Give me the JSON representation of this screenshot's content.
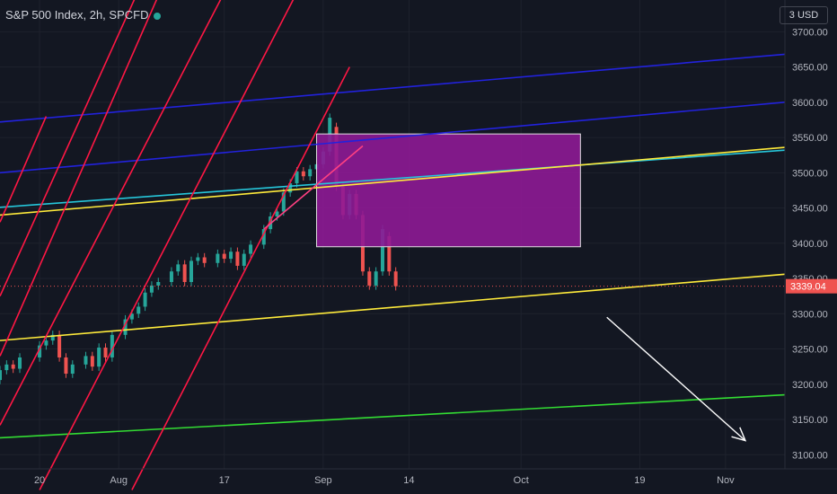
{
  "header": {
    "title": "S&P 500 Index, 2h, SPCFD",
    "currency": "3 USD"
  },
  "colors": {
    "background": "#131722",
    "up": "#26a69a",
    "down": "#ef5350",
    "current_price_bg": "#ef5350",
    "zone_fill": "#8e1a95"
  },
  "chart_data": {
    "type": "candlestick",
    "title": "S&P 500 Index, 2h, SPCFD",
    "current_price": "3339.04",
    "ylim": [
      3080,
      3745
    ],
    "y_ticks": [
      "3700.00",
      "3650.00",
      "3600.00",
      "3550.00",
      "3500.00",
      "3450.00",
      "3400.00",
      "3350.00",
      "3300.00",
      "3250.00",
      "3200.00",
      "3150.00",
      "3100.00"
    ],
    "x_ticks": [
      {
        "label": "20",
        "date": "2020-07-20"
      },
      {
        "label": "Aug",
        "date": "2020-08-01"
      },
      {
        "label": "17",
        "date": "2020-08-17"
      },
      {
        "label": "Sep",
        "date": "2020-09-01"
      },
      {
        "label": "14",
        "date": "2020-09-14"
      },
      {
        "label": "Oct",
        "date": "2020-10-01"
      },
      {
        "label": "19",
        "date": "2020-10-19"
      },
      {
        "label": "Nov",
        "date": "2020-11-01"
      }
    ],
    "xlim": [
      "2020-07-14",
      "2020-11-10"
    ],
    "candles": [
      [
        "2020-07-14",
        3206,
        3220
      ],
      [
        "2020-07-15",
        3220,
        3228
      ],
      [
        "2020-07-16",
        3228,
        3222
      ],
      [
        "2020-07-17",
        3222,
        3238
      ],
      [
        "2020-07-20",
        3238,
        3255
      ],
      [
        "2020-07-21",
        3255,
        3262
      ],
      [
        "2020-07-22",
        3262,
        3270
      ],
      [
        "2020-07-23",
        3270,
        3238
      ],
      [
        "2020-07-24",
        3238,
        3215
      ],
      [
        "2020-07-25",
        3215,
        3228
      ],
      [
        "2020-07-27",
        3228,
        3240
      ],
      [
        "2020-07-28",
        3240,
        3225
      ],
      [
        "2020-07-29",
        3225,
        3252
      ],
      [
        "2020-07-30",
        3252,
        3238
      ],
      [
        "2020-07-31",
        3238,
        3270
      ],
      [
        "2020-08-02",
        3270,
        3292
      ],
      [
        "2020-08-03",
        3292,
        3300
      ],
      [
        "2020-08-04",
        3300,
        3310
      ],
      [
        "2020-08-05",
        3310,
        3330
      ],
      [
        "2020-08-06",
        3330,
        3340
      ],
      [
        "2020-08-07",
        3340,
        3345
      ],
      [
        "2020-08-09",
        3345,
        3360
      ],
      [
        "2020-08-10",
        3360,
        3370
      ],
      [
        "2020-08-11",
        3370,
        3345
      ],
      [
        "2020-08-12",
        3345,
        3375
      ],
      [
        "2020-08-13",
        3375,
        3380
      ],
      [
        "2020-08-14",
        3380,
        3372
      ],
      [
        "2020-08-16",
        3372,
        3385
      ],
      [
        "2020-08-17",
        3385,
        3378
      ],
      [
        "2020-08-18",
        3378,
        3388
      ],
      [
        "2020-08-19",
        3388,
        3368
      ],
      [
        "2020-08-20",
        3368,
        3385
      ],
      [
        "2020-08-21",
        3385,
        3398
      ],
      [
        "2020-08-23",
        3398,
        3420
      ],
      [
        "2020-08-24",
        3420,
        3438
      ],
      [
        "2020-08-25",
        3438,
        3445
      ],
      [
        "2020-08-26",
        3445,
        3472
      ],
      [
        "2020-08-27",
        3472,
        3485
      ],
      [
        "2020-08-28",
        3485,
        3502
      ],
      [
        "2020-08-29",
        3502,
        3495
      ],
      [
        "2020-08-30",
        3495,
        3505
      ],
      [
        "2020-08-31",
        3505,
        3512
      ],
      [
        "2020-09-01",
        3512,
        3530
      ],
      [
        "2020-09-02",
        3530,
        3578
      ],
      [
        "2020-09-03",
        3565,
        3480
      ],
      [
        "2020-09-04",
        3480,
        3440
      ],
      [
        "2020-09-05",
        3440,
        3470
      ],
      [
        "2020-09-06",
        3470,
        3440
      ],
      [
        "2020-09-07",
        3440,
        3360
      ],
      [
        "2020-09-08",
        3360,
        3340
      ],
      [
        "2020-09-09",
        3340,
        3360
      ],
      [
        "2020-09-10",
        3360,
        3420
      ],
      [
        "2020-09-11",
        3410,
        3360
      ],
      [
        "2020-09-12",
        3360,
        3339
      ]
    ],
    "overlays": [
      {
        "type": "rectangle",
        "from": [
          "2020-08-31",
          3555
        ],
        "to": [
          "2020-10-10",
          3395
        ]
      },
      {
        "type": "trendline",
        "color": "#2222dd",
        "from": [
          "2020-07-14",
          3572
        ],
        "to": [
          "2020-11-10",
          3668
        ]
      },
      {
        "type": "trendline",
        "color": "#2222dd",
        "from": [
          "2020-07-14",
          3500
        ],
        "to": [
          "2020-11-10",
          3600
        ]
      },
      {
        "type": "trendline",
        "color": "#26c6da",
        "from": [
          "2020-07-14",
          3451
        ],
        "to": [
          "2020-11-10",
          3532
        ]
      },
      {
        "type": "trendline",
        "color": "#ffeb3b",
        "from": [
          "2020-07-14",
          3440
        ],
        "to": [
          "2020-11-10",
          3536
        ]
      },
      {
        "type": "trendline",
        "color": "#ffeb3b",
        "from": [
          "2020-07-14",
          3262
        ],
        "to": [
          "2020-11-10",
          3356
        ]
      },
      {
        "type": "trendline",
        "color": "#33dd33",
        "from": [
          "2020-07-14",
          3124
        ],
        "to": [
          "2020-11-10",
          3185
        ]
      },
      {
        "type": "trendline",
        "color": "#ff1744",
        "from": [
          "2020-07-14",
          3430
        ],
        "to": [
          "2020-07-21",
          3580
        ]
      },
      {
        "type": "trendline",
        "color": "#ff1744",
        "from": [
          "2020-07-14",
          3325
        ],
        "to": [
          "2020-08-06",
          3800
        ]
      },
      {
        "type": "trendline",
        "color": "#ff1744",
        "from": [
          "2020-07-14",
          3240
        ],
        "to": [
          "2020-08-14",
          3900
        ]
      },
      {
        "type": "trendline",
        "color": "#ff1744",
        "from": [
          "2020-07-14",
          3142
        ],
        "to": [
          "2020-08-25",
          3900
        ]
      },
      {
        "type": "trendline",
        "color": "#ff1744",
        "from": [
          "2020-07-20",
          3050
        ],
        "to": [
          "2020-09-05",
          3900
        ]
      },
      {
        "type": "trendline",
        "color": "#ff1744",
        "from": [
          "2020-08-03",
          3050
        ],
        "to": [
          "2020-09-05",
          3650
        ]
      },
      {
        "type": "trendline",
        "color": "#ff4081",
        "from": [
          "2020-08-23",
          3420
        ],
        "to": [
          "2020-09-07",
          3538
        ]
      },
      {
        "type": "arrow",
        "color": "#ffffff",
        "from": [
          "2020-10-14",
          3295
        ],
        "to": [
          "2020-11-04",
          3120
        ]
      }
    ]
  }
}
